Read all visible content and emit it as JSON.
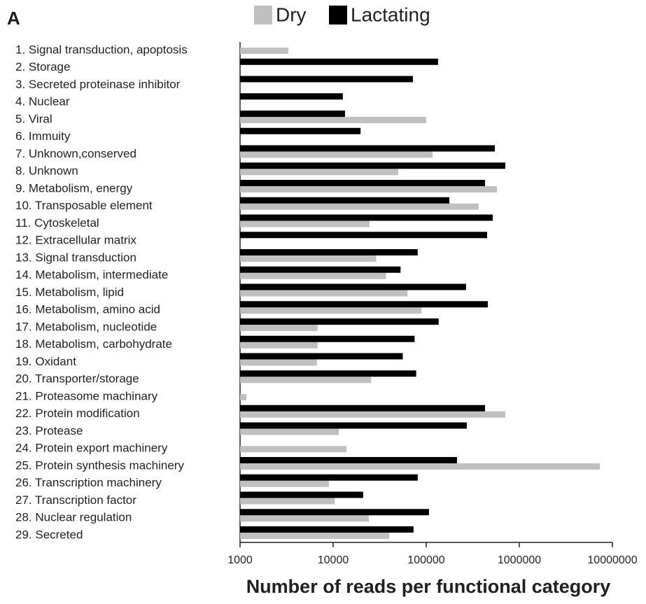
{
  "chart_data": {
    "type": "bar",
    "orientation": "horizontal",
    "panel_label": "A",
    "x_label": "Number of reads per functional category",
    "xscale": "log",
    "xlim": [
      1000,
      10000000
    ],
    "xticks": [
      1000,
      10000,
      100000,
      1000000,
      10000000
    ],
    "legend": "top",
    "categories": [
      "1. Signal transduction, apoptosis",
      "2. Storage",
      "3. Secreted proteinase inhibitor",
      "4. Nuclear",
      "5. Viral",
      "6. Immuity",
      "7. Unknown,conserved",
      "8. Unknown",
      "9. Metabolism, energy",
      "10. Transposable element",
      "11. Cytoskeletal",
      "12. Extracellular matrix",
      "13. Signal transduction",
      "14. Metabolism, intermediate",
      "15. Metabolism, lipid",
      "16. Metabolism, amino acid",
      "17. Metabolism, nucleotide",
      "18. Metabolism, carbohydrate",
      "19. Oxidant",
      "20. Transporter/storage",
      "21. Proteasome machinary",
      "22. Protein modification",
      "23. Protease",
      "24. Protein export machinery",
      "25. Protein synthesis machinery",
      "26. Transcription machinery",
      "27. Transcription factor",
      "28. Nuclear regulation",
      "29. Secreted"
    ],
    "series": [
      {
        "name": "Dry",
        "color": "#c0c0c0",
        "values": [
          3300,
          null,
          null,
          null,
          100000,
          null,
          117000,
          50000,
          575000,
          366000,
          24600,
          null,
          29000,
          37000,
          63000,
          89000,
          6800,
          6800,
          6700,
          25500,
          1170,
          707000,
          11500,
          13900,
          7330000,
          9000,
          10400,
          24200,
          40000
        ]
      },
      {
        "name": "Lactating",
        "color": "#000000",
        "values": [
          null,
          134000,
          72000,
          12700,
          13400,
          19700,
          546000,
          707000,
          428000,
          177000,
          518000,
          451000,
          81000,
          53000,
          268000,
          459000,
          136000,
          75000,
          56000,
          78000,
          null,
          428000,
          273000,
          null,
          214000,
          81000,
          21000,
          107000,
          73000
        ]
      }
    ]
  }
}
